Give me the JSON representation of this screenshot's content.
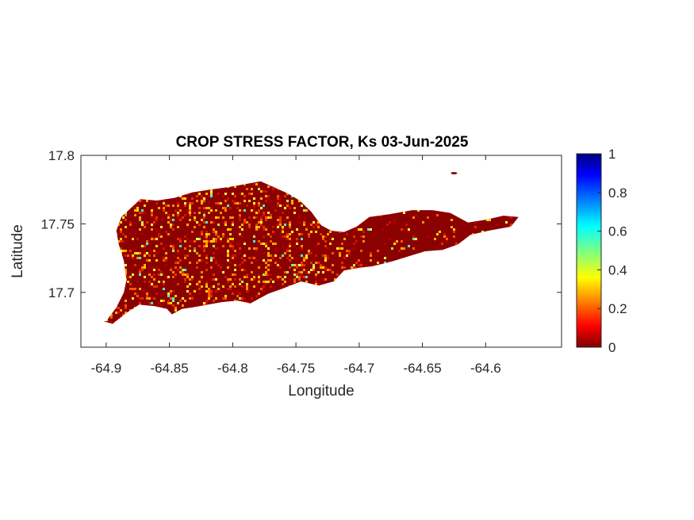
{
  "title": "CROP STRESS FACTOR, Ks  03-Jun-2025",
  "xlabel": "Longitude",
  "ylabel": "Latitude",
  "chart_data": {
    "type": "heatmap",
    "title": "CROP STRESS FACTOR, Ks  03-Jun-2025",
    "xlabel": "Longitude",
    "ylabel": "Latitude",
    "xlim": [
      -64.92,
      -64.54
    ],
    "ylim": [
      17.66,
      17.8
    ],
    "xticks": [
      -64.9,
      -64.85,
      -64.8,
      -64.75,
      -64.7,
      -64.65,
      -64.6
    ],
    "xtick_labels": [
      "-64.9",
      "-64.85",
      "-64.8",
      "-64.75",
      "-64.7",
      "-64.65",
      "-64.6"
    ],
    "yticks": [
      17.7,
      17.75,
      17.8
    ],
    "ytick_labels": [
      "17.7",
      "17.75",
      "17.8"
    ],
    "colorbar": {
      "colormap": "jet",
      "range": [
        0,
        1
      ],
      "ticks": [
        0,
        0.2,
        0.4,
        0.6,
        0.8,
        1
      ],
      "tick_labels": [
        "0",
        "0.2",
        "0.4",
        "0.6",
        "0.8",
        "1"
      ]
    },
    "island_outline": [
      [
        -64.9,
        17.679
      ],
      [
        -64.892,
        17.689
      ],
      [
        -64.886,
        17.7
      ],
      [
        -64.884,
        17.709
      ],
      [
        -64.886,
        17.723
      ],
      [
        -64.89,
        17.735
      ],
      [
        -64.892,
        17.745
      ],
      [
        -64.888,
        17.755
      ],
      [
        -64.88,
        17.762
      ],
      [
        -64.873,
        17.768
      ],
      [
        -64.86,
        17.767
      ],
      [
        -64.846,
        17.769
      ],
      [
        -64.832,
        17.773
      ],
      [
        -64.818,
        17.775
      ],
      [
        -64.802,
        17.777
      ],
      [
        -64.79,
        17.779
      ],
      [
        -64.778,
        17.781
      ],
      [
        -64.768,
        17.777
      ],
      [
        -64.756,
        17.772
      ],
      [
        -64.747,
        17.767
      ],
      [
        -64.738,
        17.759
      ],
      [
        -64.73,
        17.749
      ],
      [
        -64.722,
        17.745
      ],
      [
        -64.712,
        17.744
      ],
      [
        -64.702,
        17.748
      ],
      [
        -64.692,
        17.755
      ],
      [
        -64.676,
        17.757
      ],
      [
        -64.658,
        17.76
      ],
      [
        -64.642,
        17.76
      ],
      [
        -64.628,
        17.758
      ],
      [
        -64.614,
        17.751
      ],
      [
        -64.6,
        17.753
      ],
      [
        -64.586,
        17.756
      ],
      [
        -64.574,
        17.755
      ],
      [
        -64.58,
        17.748
      ],
      [
        -64.598,
        17.745
      ],
      [
        -64.612,
        17.742
      ],
      [
        -64.622,
        17.735
      ],
      [
        -64.634,
        17.731
      ],
      [
        -64.648,
        17.73
      ],
      [
        -64.662,
        17.726
      ],
      [
        -64.676,
        17.722
      ],
      [
        -64.69,
        17.719
      ],
      [
        -64.7,
        17.718
      ],
      [
        -64.712,
        17.716
      ],
      [
        -64.72,
        17.708
      ],
      [
        -64.732,
        17.705
      ],
      [
        -64.746,
        17.708
      ],
      [
        -64.76,
        17.703
      ],
      [
        -64.772,
        17.699
      ],
      [
        -64.78,
        17.695
      ],
      [
        -64.786,
        17.692
      ],
      [
        -64.796,
        17.694
      ],
      [
        -64.808,
        17.693
      ],
      [
        -64.82,
        17.691
      ],
      [
        -64.832,
        17.689
      ],
      [
        -64.84,
        17.688
      ],
      [
        -64.848,
        17.684
      ],
      [
        -64.852,
        17.688
      ],
      [
        -64.862,
        17.69
      ],
      [
        -64.874,
        17.691
      ],
      [
        -64.884,
        17.685
      ],
      [
        -64.895,
        17.677
      ],
      [
        -64.902,
        17.679
      ]
    ],
    "islet": [
      -64.625,
      17.787
    ]
  }
}
